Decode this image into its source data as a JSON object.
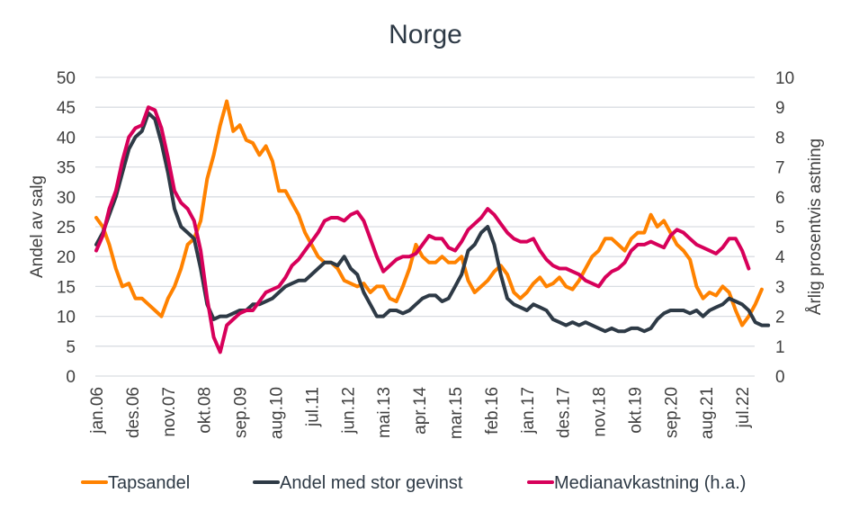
{
  "chart_data": {
    "type": "line",
    "title": "Norge",
    "ylabel": "Andel av salg",
    "y2label": "Årlig prosentvis astning",
    "ylim": [
      0,
      50
    ],
    "y2lim": [
      0,
      10
    ],
    "yticks": [
      "0",
      "5",
      "10",
      "15",
      "20",
      "25",
      "30",
      "35",
      "40",
      "45",
      "50"
    ],
    "y2ticks": [
      "0",
      "1",
      "2",
      "3",
      "4",
      "5",
      "6",
      "7",
      "8",
      "9",
      "10"
    ],
    "grid": true,
    "legend_position": "bottom",
    "x_start": "jan.06",
    "x_step_months": 2,
    "xticks": [
      "jan.06",
      "des.06",
      "nov.07",
      "okt.08",
      "sep.09",
      "aug.10",
      "jul.11",
      "jun.12",
      "mai.13",
      "apr.14",
      "mar.15",
      "feb.16",
      "jan.17",
      "des.17",
      "nov.18",
      "okt.19",
      "sep.20",
      "aug.21",
      "jul.22"
    ],
    "series": [
      {
        "name": "Tapsandel",
        "axis": "left",
        "color": "#ff8200",
        "values": [
          26.5,
          25,
          22,
          18,
          15,
          15.5,
          13,
          13,
          12,
          11,
          10,
          13,
          15,
          18,
          22,
          23,
          26,
          33,
          37,
          42,
          46,
          41,
          42,
          39.5,
          39,
          37,
          38.5,
          36,
          31,
          31,
          29,
          27,
          24,
          22,
          20,
          19,
          19,
          18,
          16,
          15.5,
          15,
          15.5,
          14,
          15,
          15,
          13,
          12.5,
          15,
          18,
          22,
          20,
          19,
          19,
          20,
          19,
          19,
          20,
          16,
          14,
          15,
          16,
          17.5,
          18.5,
          17,
          14,
          13,
          14,
          15.5,
          16.5,
          15,
          15.5,
          16.5,
          15,
          14.5,
          16,
          18,
          20,
          21,
          23,
          23,
          22,
          21,
          23,
          24,
          24,
          27,
          25,
          26,
          24,
          22,
          21,
          19.5,
          15,
          13,
          14,
          13.5,
          15,
          14,
          11,
          8.5,
          10,
          12,
          14.5
        ]
      },
      {
        "name": "Andel med stor gevinst",
        "axis": "left",
        "color": "#2e3a46",
        "values": [
          22,
          24,
          27,
          30,
          34,
          38,
          40,
          41,
          44,
          43,
          39,
          34,
          28,
          25,
          24,
          23,
          18,
          12,
          9.5,
          10,
          10,
          10.5,
          11,
          11,
          12,
          12,
          12.5,
          13,
          14,
          15,
          15.5,
          16,
          16,
          17,
          18,
          19,
          19,
          18.5,
          20,
          18,
          17,
          14,
          12,
          10,
          10,
          11,
          11,
          10.5,
          11,
          12,
          13,
          13.5,
          13.5,
          12.5,
          13,
          15,
          17,
          21,
          22,
          24,
          25,
          22,
          17,
          13,
          12,
          11.5,
          11,
          12,
          11.5,
          11,
          9.5,
          9,
          8.5,
          9,
          8.5,
          9,
          8.5,
          8,
          7.5,
          8,
          7.5,
          7.5,
          8,
          8,
          7.5,
          8,
          9.5,
          10.5,
          11,
          11,
          11,
          10.5,
          11,
          10,
          11,
          11.5,
          12,
          13,
          12.5,
          12,
          11,
          9,
          8.5,
          8.5
        ]
      },
      {
        "name": "Medianavkastning (h.a.)",
        "axis": "right",
        "color": "#d7005a",
        "values": [
          4.2,
          4.7,
          5.6,
          6.2,
          7.2,
          8,
          8.3,
          8.4,
          9,
          8.9,
          8.3,
          7.3,
          6.2,
          5.8,
          5.6,
          5.2,
          4.2,
          2.6,
          1.3,
          0.8,
          1.7,
          1.9,
          2.1,
          2.2,
          2.2,
          2.5,
          2.8,
          2.9,
          3,
          3.3,
          3.7,
          3.9,
          4.2,
          4.5,
          4.8,
          5.2,
          5.3,
          5.3,
          5.2,
          5.4,
          5.5,
          5.2,
          4.6,
          4,
          3.5,
          3.7,
          3.9,
          4,
          4,
          4.1,
          4.4,
          4.7,
          4.6,
          4.6,
          4.3,
          4.2,
          4.5,
          4.9,
          5.1,
          5.3,
          5.6,
          5.4,
          5.1,
          4.8,
          4.6,
          4.5,
          4.5,
          4.6,
          4.2,
          3.9,
          3.7,
          3.6,
          3.6,
          3.5,
          3.4,
          3.2,
          3.1,
          3,
          3.3,
          3.5,
          3.6,
          3.8,
          4.2,
          4.4,
          4.4,
          4.5,
          4.4,
          4.3,
          4.7,
          4.9,
          4.8,
          4.6,
          4.4,
          4.3,
          4.2,
          4.1,
          4.3,
          4.6,
          4.6,
          4.2,
          3.6
        ]
      }
    ]
  }
}
